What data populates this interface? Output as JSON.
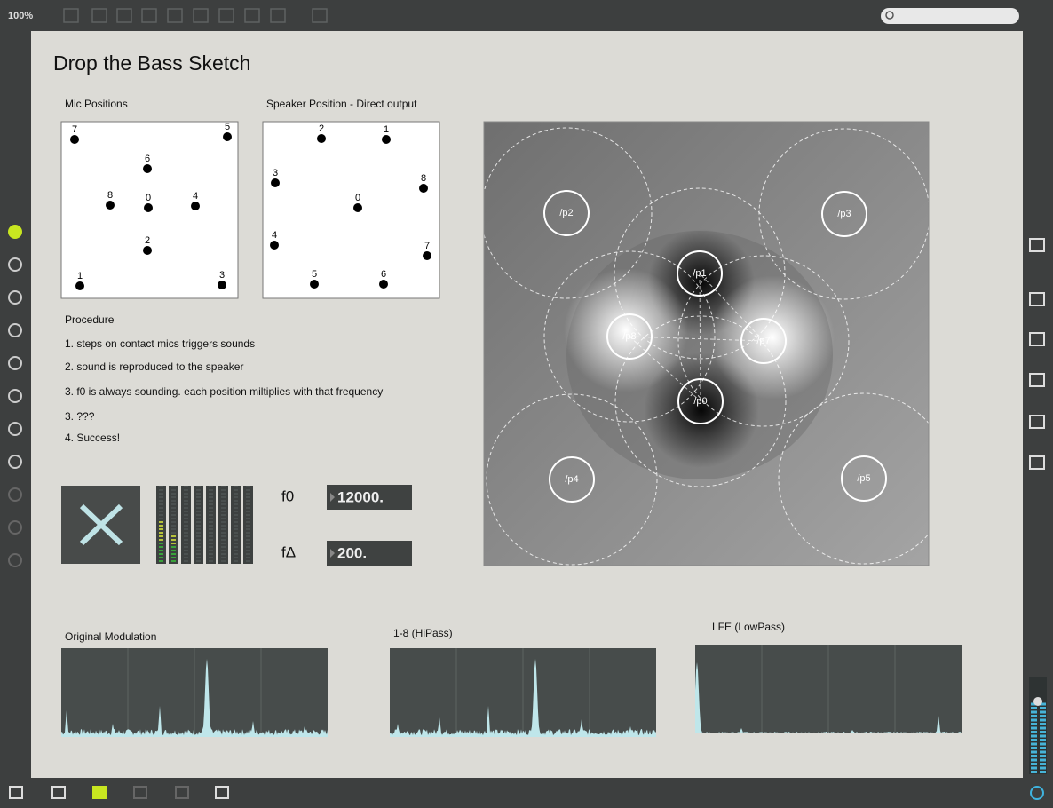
{
  "toolbar": {
    "zoom": "100%"
  },
  "patch": {
    "title": "Drop the Bass Sketch",
    "mic_positions": {
      "title": "Mic Positions",
      "labels": [
        "7",
        "5",
        "6",
        "8",
        "0",
        "4",
        "2",
        "1",
        "3"
      ]
    },
    "speaker_positions": {
      "title": "Speaker Position - Direct output",
      "labels": [
        "2",
        "1",
        "3",
        "8",
        "0",
        "4",
        "7",
        "5",
        "6"
      ]
    },
    "procedure": {
      "title": "Procedure",
      "steps": [
        "1. steps on contact mics triggers sounds",
        "2. sound is reproduced to the speaker",
        "3. f0 is always sounding. each position miltiplies with that frequency",
        "3. ???",
        "4. Success!"
      ]
    },
    "number_boxes": [
      {
        "label": "f0",
        "value": "12000."
      },
      {
        "label": "fΔ",
        "value": "200."
      }
    ],
    "node_map": {
      "labels": [
        "/p2",
        "/p3",
        "/p1",
        "/p8",
        "/p7",
        "/p0",
        "/p4",
        "/p5"
      ]
    },
    "spectra": [
      {
        "title": "Original Modulation"
      },
      {
        "title": "1-8 (HiPass)"
      },
      {
        "title": "LFE (LowPass)"
      }
    ]
  }
}
